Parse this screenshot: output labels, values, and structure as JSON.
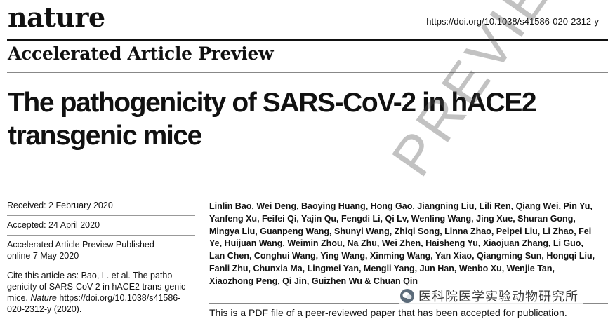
{
  "header": {
    "journal": "nature",
    "doi": "https://doi.org/10.1038/s41586-020-2312-y",
    "section": "Accelerated Article Preview"
  },
  "article": {
    "title_line1": "The pathogenicity of SARS-CoV-2 in hACE2",
    "title_line2": "transgenic mice",
    "received": "Received: 2 February 2020",
    "accepted": "Accepted: 24 April 2020",
    "published_line1": "Accelerated Article Preview Published",
    "published_line2": "online 7 May 2020",
    "cite_prefix": "Cite this article as: Bao, L. et al. The patho-genicity of SARS-CoV-2 in hACE2 trans-genic mice. ",
    "cite_journal": "Nature",
    "cite_suffix": " https://doi.org/10.1038/s41586-020-2312-y (2020).",
    "authors": "Linlin Bao, Wei Deng, Baoying Huang, Hong Gao, Jiangning Liu, Lili Ren, Qiang Wei, Pin Yu, Yanfeng Xu, Feifei Qi, Yajin Qu, Fengdi Li, Qi Lv, Wenling Wang, Jing Xue, Shuran Gong, Mingya Liu, Guanpeng Wang, Shunyi Wang, Zhiqi Song, Linna Zhao, Peipei Liu, Li Zhao, Fei Ye, Huijuan Wang, Weimin Zhou, Na Zhu, Wei Zhen, Haisheng Yu, Xiaojuan Zhang, Li Guo, Lan Chen, Conghui Wang, Ying Wang, Xinming Wang, Yan Xiao, Qiangming Sun, Hongqi Liu, Fanli Zhu, Chunxia Ma, Lingmei Yan, Mengli Yang, Jun Han, Wenbo Xu, Wenjie Tan, Xiaozhong Peng, Qi Jin, Guizhen Wu & Chuan Qin",
    "pdf_note": "This is a PDF file of a peer-reviewed paper that has been accepted for publication."
  },
  "overlay": {
    "watermark": "PREVIEW",
    "stamp_text": "医科院医学实验动物研究所",
    "stamp_icon": "wechat-icon"
  }
}
